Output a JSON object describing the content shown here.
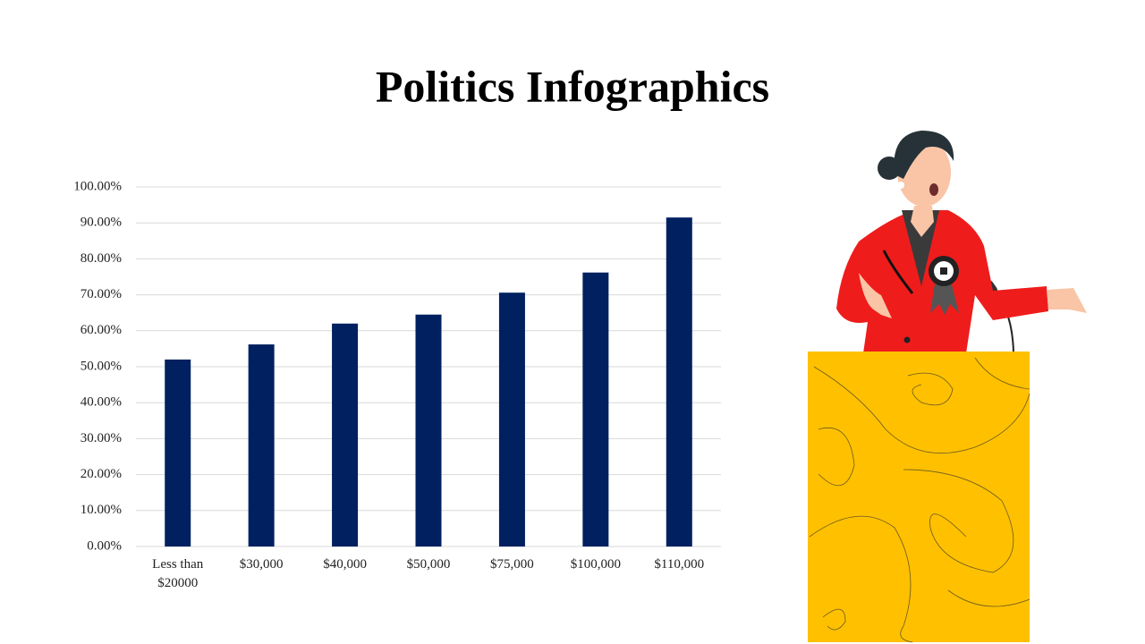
{
  "chart_data": {
    "type": "bar",
    "title": "Politics Infographics",
    "categories": [
      "Less than $20000",
      "$30,000",
      "$40,000",
      "$50,000",
      "$75,000",
      "$100,000",
      "$110,000"
    ],
    "values": [
      52,
      56.2,
      62,
      64.5,
      70.6,
      76.2,
      91.5
    ],
    "color": "#002060",
    "ylim": [
      0,
      100
    ],
    "yticks": [
      {
        "value": 0,
        "label": "0.00%"
      },
      {
        "value": 10,
        "label": "10.00%"
      },
      {
        "value": 20,
        "label": "20.00%"
      },
      {
        "value": 30,
        "label": "30.00%"
      },
      {
        "value": 40,
        "label": "40.00%"
      },
      {
        "value": 50,
        "label": "50.00%"
      },
      {
        "value": 60,
        "label": "60.00%"
      },
      {
        "value": 70,
        "label": "70.00%"
      },
      {
        "value": 80,
        "label": "80.00%"
      },
      {
        "value": 90,
        "label": "90.00%"
      },
      {
        "value": 100,
        "label": "100.00%"
      }
    ],
    "grid": true
  }
}
